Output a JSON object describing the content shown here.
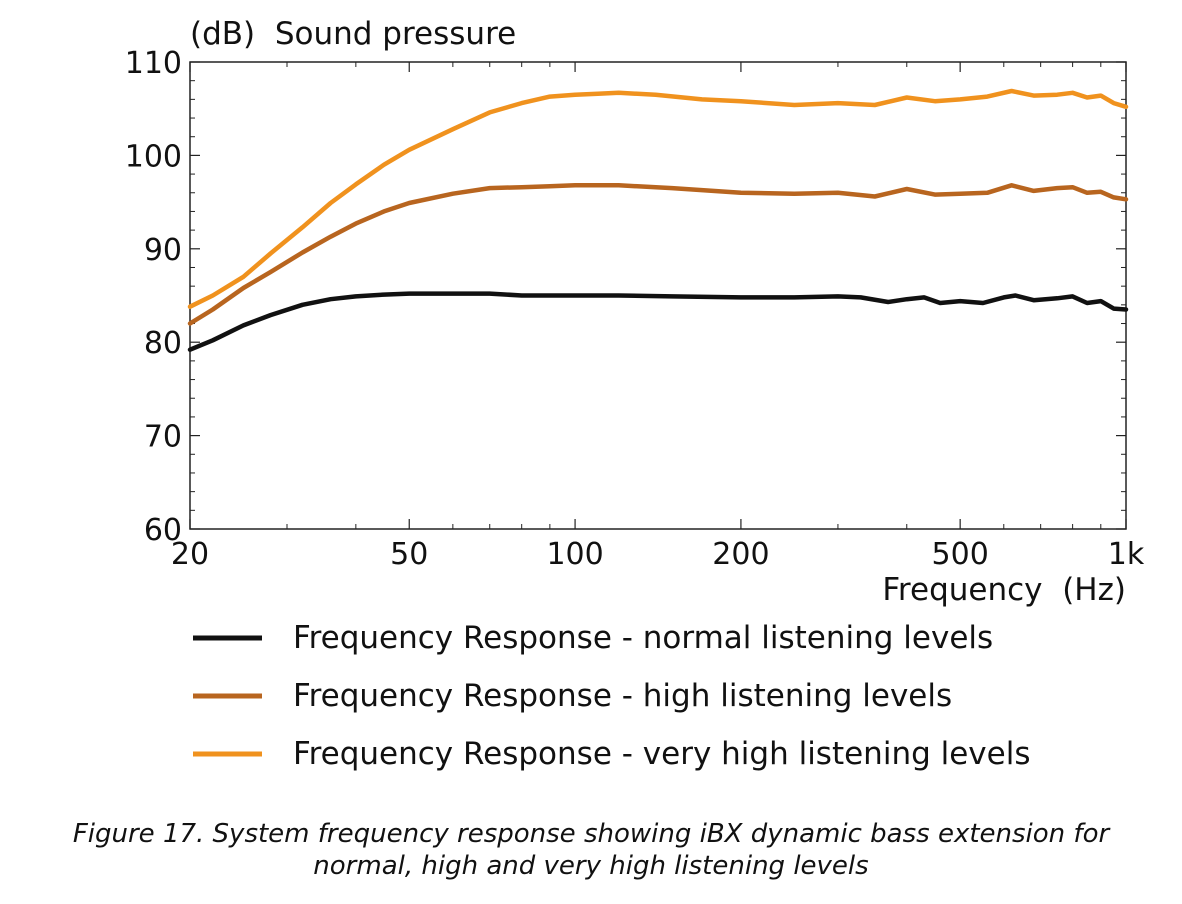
{
  "chart_data": {
    "type": "line",
    "ylabel": "(dB)  Sound pressure",
    "xlabel": "Frequency  (Hz)",
    "x_scale": "log",
    "xlim": [
      20,
      1000
    ],
    "ylim": [
      60,
      110
    ],
    "x_ticks": [
      20,
      50,
      100,
      200,
      500,
      1000
    ],
    "x_tick_labels": [
      "20",
      "50",
      "100",
      "200",
      "500",
      "1k"
    ],
    "y_ticks": [
      60,
      70,
      80,
      90,
      100,
      110
    ],
    "y_tick_labels": [
      "60",
      "70",
      "80",
      "90",
      "100",
      "110"
    ],
    "grid": false,
    "legend_position": "bottom",
    "series": [
      {
        "name": "Frequency Response - normal listening levels",
        "color": "#111111",
        "points": [
          [
            20,
            79.2
          ],
          [
            22,
            80.2
          ],
          [
            25,
            81.8
          ],
          [
            28,
            82.9
          ],
          [
            32,
            84.0
          ],
          [
            36,
            84.6
          ],
          [
            40,
            84.9
          ],
          [
            45,
            85.1
          ],
          [
            50,
            85.2
          ],
          [
            60,
            85.2
          ],
          [
            70,
            85.2
          ],
          [
            80,
            85.0
          ],
          [
            100,
            85.0
          ],
          [
            120,
            85.0
          ],
          [
            150,
            84.9
          ],
          [
            200,
            84.8
          ],
          [
            250,
            84.8
          ],
          [
            300,
            84.9
          ],
          [
            330,
            84.8
          ],
          [
            370,
            84.3
          ],
          [
            400,
            84.6
          ],
          [
            430,
            84.8
          ],
          [
            460,
            84.2
          ],
          [
            500,
            84.4
          ],
          [
            550,
            84.2
          ],
          [
            600,
            84.8
          ],
          [
            630,
            85.0
          ],
          [
            680,
            84.5
          ],
          [
            750,
            84.7
          ],
          [
            800,
            84.9
          ],
          [
            850,
            84.2
          ],
          [
            900,
            84.4
          ],
          [
            950,
            83.6
          ],
          [
            1000,
            83.5
          ]
        ]
      },
      {
        "name": "Frequency Response - high listening levels",
        "color": "#b8651f",
        "points": [
          [
            20,
            82.0
          ],
          [
            22,
            83.5
          ],
          [
            25,
            85.8
          ],
          [
            28,
            87.5
          ],
          [
            32,
            89.6
          ],
          [
            36,
            91.3
          ],
          [
            40,
            92.7
          ],
          [
            45,
            94.0
          ],
          [
            50,
            94.9
          ],
          [
            60,
            95.9
          ],
          [
            70,
            96.5
          ],
          [
            80,
            96.6
          ],
          [
            90,
            96.7
          ],
          [
            100,
            96.8
          ],
          [
            120,
            96.8
          ],
          [
            150,
            96.5
          ],
          [
            200,
            96.0
          ],
          [
            250,
            95.9
          ],
          [
            300,
            96.0
          ],
          [
            350,
            95.6
          ],
          [
            400,
            96.4
          ],
          [
            450,
            95.8
          ],
          [
            500,
            95.9
          ],
          [
            560,
            96.0
          ],
          [
            620,
            96.8
          ],
          [
            680,
            96.2
          ],
          [
            750,
            96.5
          ],
          [
            800,
            96.6
          ],
          [
            850,
            96.0
          ],
          [
            900,
            96.1
          ],
          [
            950,
            95.5
          ],
          [
            1000,
            95.3
          ]
        ]
      },
      {
        "name": "Frequency Response - very high listening levels",
        "color": "#f0921e",
        "points": [
          [
            20,
            83.8
          ],
          [
            22,
            85.0
          ],
          [
            25,
            87.0
          ],
          [
            28,
            89.5
          ],
          [
            32,
            92.3
          ],
          [
            36,
            94.9
          ],
          [
            40,
            96.9
          ],
          [
            45,
            99.0
          ],
          [
            50,
            100.6
          ],
          [
            60,
            102.8
          ],
          [
            70,
            104.6
          ],
          [
            80,
            105.6
          ],
          [
            90,
            106.3
          ],
          [
            100,
            106.5
          ],
          [
            110,
            106.6
          ],
          [
            120,
            106.7
          ],
          [
            140,
            106.5
          ],
          [
            170,
            106.0
          ],
          [
            200,
            105.8
          ],
          [
            250,
            105.4
          ],
          [
            300,
            105.6
          ],
          [
            350,
            105.4
          ],
          [
            400,
            106.2
          ],
          [
            450,
            105.8
          ],
          [
            500,
            106.0
          ],
          [
            560,
            106.3
          ],
          [
            620,
            106.9
          ],
          [
            680,
            106.4
          ],
          [
            750,
            106.5
          ],
          [
            800,
            106.7
          ],
          [
            850,
            106.2
          ],
          [
            900,
            106.4
          ],
          [
            950,
            105.6
          ],
          [
            1000,
            105.2
          ]
        ]
      }
    ]
  },
  "caption": {
    "line1": "Figure 17. System frequency response showing iBX dynamic bass extension for",
    "line2": "normal, high and very high listening levels"
  }
}
